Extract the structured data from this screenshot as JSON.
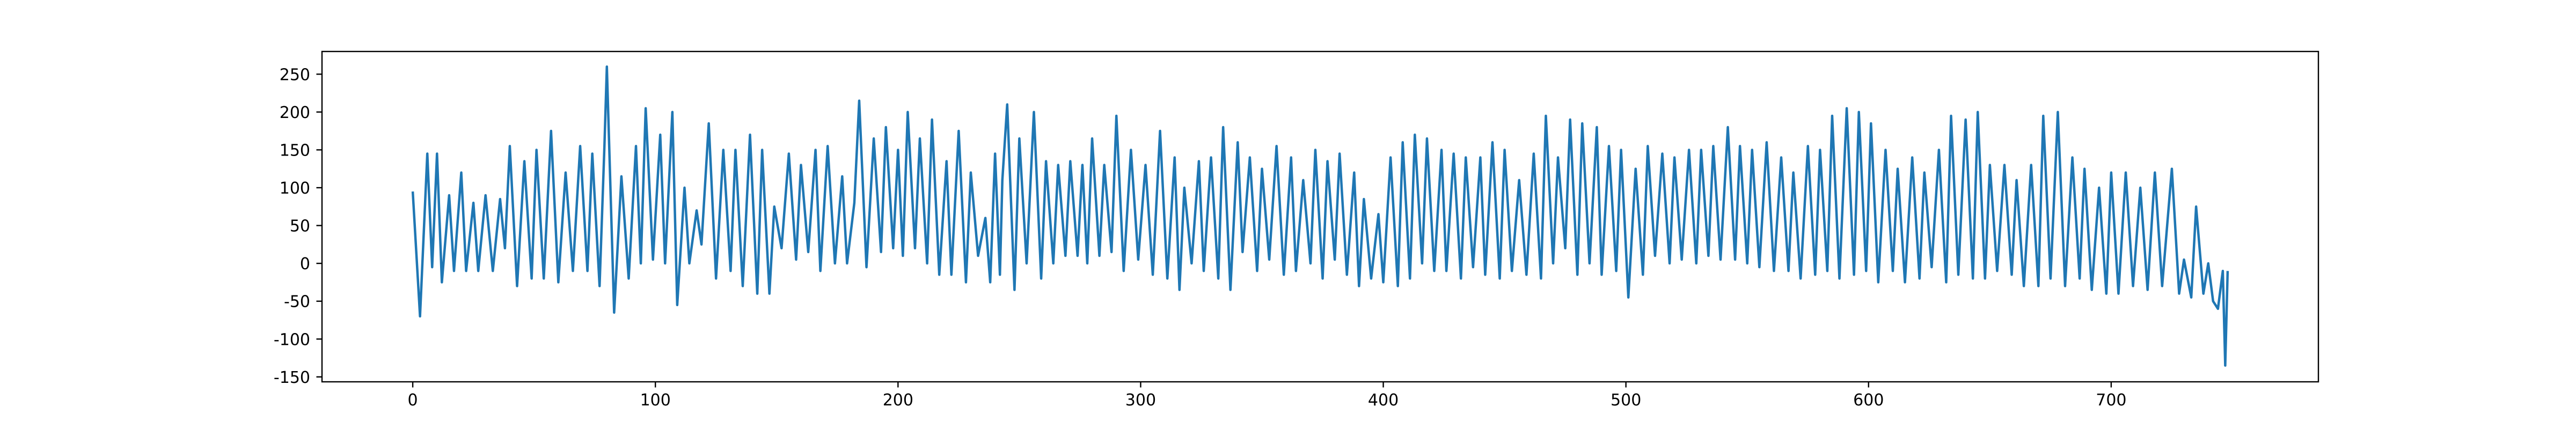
{
  "chart_data": {
    "type": "line",
    "color": "#1f77b4",
    "xlim": [
      -37.4,
      785.4
    ],
    "ylim": [
      -156.5,
      280
    ],
    "xticks": [
      0,
      100,
      200,
      300,
      400,
      500,
      600,
      700
    ],
    "yticks": [
      -150,
      -100,
      -50,
      0,
      50,
      100,
      150,
      200,
      250
    ],
    "x": [
      0,
      3,
      6,
      8,
      10,
      12,
      15,
      17,
      20,
      22,
      25,
      27,
      30,
      33,
      36,
      38,
      40,
      43,
      46,
      49,
      51,
      54,
      57,
      60,
      63,
      66,
      69,
      72,
      74,
      77,
      79,
      80,
      83,
      86,
      89,
      92,
      94,
      96,
      99,
      102,
      104,
      107,
      109,
      112,
      114,
      117,
      119,
      122,
      125,
      128,
      131,
      133,
      136,
      139,
      142,
      144,
      147,
      149,
      152,
      155,
      158,
      160,
      163,
      166,
      168,
      171,
      174,
      177,
      179,
      182,
      184,
      187,
      190,
      193,
      195,
      198,
      200,
      202,
      204,
      207,
      209,
      212,
      214,
      217,
      220,
      222,
      225,
      228,
      230,
      233,
      236,
      238,
      240,
      242,
      243,
      245,
      248,
      250,
      253,
      256,
      259,
      261,
      264,
      266,
      269,
      271,
      274,
      276,
      278,
      280,
      283,
      285,
      288,
      290,
      293,
      296,
      299,
      302,
      305,
      308,
      311,
      314,
      316,
      318,
      321,
      324,
      326,
      329,
      332,
      334,
      337,
      340,
      342,
      345,
      348,
      350,
      353,
      356,
      359,
      362,
      364,
      367,
      370,
      372,
      375,
      377,
      380,
      382,
      385,
      388,
      390,
      392,
      395,
      398,
      400,
      403,
      406,
      408,
      411,
      413,
      416,
      418,
      421,
      424,
      426,
      429,
      432,
      434,
      437,
      440,
      442,
      445,
      448,
      450,
      453,
      456,
      459,
      462,
      465,
      467,
      470,
      472,
      475,
      477,
      480,
      482,
      485,
      488,
      490,
      493,
      496,
      498,
      501,
      504,
      507,
      509,
      512,
      515,
      518,
      520,
      523,
      526,
      529,
      531,
      534,
      536,
      539,
      542,
      545,
      547,
      550,
      552,
      555,
      558,
      561,
      564,
      567,
      569,
      572,
      575,
      578,
      580,
      583,
      585,
      588,
      591,
      594,
      596,
      599,
      601,
      604,
      607,
      610,
      612,
      615,
      618,
      621,
      623,
      626,
      629,
      632,
      634,
      637,
      640,
      643,
      645,
      648,
      650,
      653,
      656,
      659,
      661,
      664,
      667,
      670,
      672,
      675,
      678,
      681,
      684,
      687,
      689,
      692,
      695,
      698,
      700,
      703,
      706,
      709,
      712,
      715,
      718,
      721,
      725,
      728,
      730,
      733,
      735,
      738,
      740,
      742,
      744,
      746,
      747,
      748
    ],
    "values": [
      95,
      -70,
      145,
      -5,
      145,
      -25,
      90,
      -10,
      120,
      -10,
      80,
      -10,
      90,
      -10,
      85,
      20,
      155,
      -30,
      135,
      -20,
      150,
      -20,
      175,
      -25,
      120,
      -10,
      155,
      -10,
      145,
      -30,
      155,
      260,
      -65,
      115,
      -20,
      155,
      0,
      205,
      5,
      170,
      0,
      200,
      -55,
      100,
      0,
      70,
      25,
      185,
      -20,
      150,
      -10,
      150,
      -30,
      170,
      -40,
      150,
      -40,
      75,
      20,
      145,
      5,
      130,
      15,
      150,
      -10,
      155,
      0,
      115,
      0,
      80,
      215,
      -5,
      165,
      15,
      180,
      20,
      150,
      10,
      200,
      20,
      165,
      0,
      190,
      -15,
      135,
      -15,
      175,
      -25,
      120,
      10,
      60,
      -25,
      145,
      -15,
      110,
      210,
      -35,
      165,
      0,
      200,
      -20,
      135,
      0,
      130,
      10,
      135,
      10,
      130,
      0,
      165,
      10,
      130,
      15,
      195,
      -10,
      150,
      5,
      130,
      -15,
      175,
      -20,
      140,
      -35,
      100,
      0,
      135,
      -10,
      140,
      -20,
      180,
      -35,
      160,
      15,
      140,
      -10,
      125,
      5,
      155,
      -15,
      140,
      -10,
      110,
      0,
      150,
      -20,
      135,
      5,
      145,
      -15,
      120,
      -30,
      85,
      -20,
      65,
      -25,
      140,
      -30,
      160,
      -20,
      170,
      0,
      165,
      -10,
      150,
      -10,
      145,
      -20,
      140,
      -5,
      140,
      -15,
      160,
      -20,
      150,
      -10,
      110,
      -15,
      145,
      -20,
      195,
      0,
      140,
      20,
      190,
      -15,
      185,
      0,
      180,
      -15,
      155,
      -10,
      150,
      -45,
      125,
      -15,
      155,
      10,
      145,
      0,
      140,
      5,
      150,
      0,
      150,
      10,
      155,
      5,
      180,
      5,
      155,
      0,
      150,
      -5,
      160,
      -10,
      140,
      -10,
      120,
      -20,
      155,
      -15,
      150,
      -10,
      195,
      -20,
      205,
      -15,
      200,
      -10,
      185,
      -25,
      150,
      -10,
      125,
      -25,
      140,
      -20,
      120,
      -5,
      150,
      -25,
      195,
      -15,
      190,
      -20,
      200,
      -20,
      130,
      -10,
      130,
      -15,
      110,
      -30,
      130,
      -30,
      195,
      -20,
      200,
      -30,
      140,
      -20,
      125,
      -35,
      100,
      -40,
      120,
      -40,
      120,
      -30,
      100,
      -35,
      120,
      -30,
      125,
      -40,
      5,
      -45,
      75,
      -40,
      0,
      -50,
      -60,
      -10,
      -135,
      -10
    ]
  }
}
